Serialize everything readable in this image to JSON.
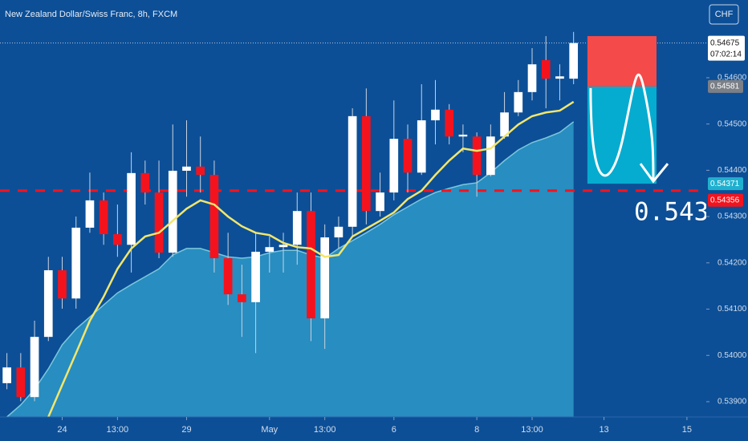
{
  "chart_data": {
    "type": "candlestick",
    "title": "New Zealand Dollar/Swiss Franc, 8h, FXCM",
    "currency": "CHF",
    "up_color": "#ffffff",
    "down_color": "#f4131d",
    "open": [
      0.5394,
      0.53974,
      0.5391,
      0.5404,
      0.54184,
      0.54123,
      0.54276,
      0.54335,
      0.54262,
      0.54239,
      0.54394,
      0.54352,
      0.54222,
      0.54399,
      0.54408,
      0.5439,
      0.5421,
      0.54132,
      0.54115,
      0.54224,
      0.54234,
      0.54239,
      0.54312,
      0.5408,
      0.54255,
      0.54278,
      0.54517,
      0.54312,
      0.54352,
      0.54468,
      0.54395,
      0.54508,
      0.54531,
      0.54473,
      0.54473,
      0.5439,
      0.54473,
      0.54525,
      0.54569,
      0.54638,
      0.54598,
      0.54598
    ],
    "high": [
      0.54005,
      0.54005,
      0.54075,
      0.54213,
      0.54213,
      0.543,
      0.54395,
      0.54352,
      0.54326,
      0.54439,
      0.54421,
      0.54421,
      0.54499,
      0.54508,
      0.54473,
      0.54421,
      0.54265,
      0.54196,
      0.54265,
      0.54257,
      0.54265,
      0.54352,
      0.54352,
      0.54283,
      0.543,
      0.54534,
      0.54577,
      0.54395,
      0.54551,
      0.54499,
      0.54586,
      0.54595,
      0.54543,
      0.54499,
      0.54482,
      0.54499,
      0.54569,
      0.54595,
      0.54664,
      0.5469,
      0.54629,
      0.54699
    ],
    "low": [
      0.53927,
      0.53901,
      0.53901,
      0.54031,
      0.54101,
      0.54101,
      0.54265,
      0.54239,
      0.54213,
      0.54179,
      0.54326,
      0.5421,
      0.54213,
      0.54343,
      0.54352,
      0.54179,
      0.54109,
      0.5404,
      0.54005,
      0.54179,
      0.54179,
      0.54196,
      0.54031,
      0.54014,
      0.54231,
      0.54257,
      0.54283,
      0.543,
      0.54335,
      0.54352,
      0.5439,
      0.54456,
      0.54456,
      0.54439,
      0.54343,
      0.54387,
      0.54468,
      0.54517,
      0.54551,
      0.54534,
      0.54551,
      0.54586
    ],
    "close": [
      0.53974,
      0.5391,
      0.5404,
      0.54184,
      0.54123,
      0.54276,
      0.54335,
      0.54262,
      0.54239,
      0.54394,
      0.54352,
      0.54222,
      0.54399,
      0.54408,
      0.5439,
      0.5421,
      0.54132,
      0.54115,
      0.54224,
      0.54234,
      0.54239,
      0.54312,
      0.5408,
      0.54255,
      0.54278,
      0.54517,
      0.54312,
      0.54352,
      0.54468,
      0.54395,
      0.54508,
      0.54531,
      0.54473,
      0.54477,
      0.5439,
      0.54473,
      0.54525,
      0.54569,
      0.54629,
      0.54598,
      0.54603,
      0.54675
    ],
    "ma_fast": {
      "color": "#f3e66a",
      "values": [
        null,
        null,
        null,
        0.53867,
        0.53936,
        0.54005,
        0.54075,
        0.54127,
        0.54187,
        0.54231,
        0.54257,
        0.54265,
        0.54291,
        0.54317,
        0.54335,
        0.54326,
        0.543,
        0.54279,
        0.54265,
        0.5426,
        0.54243,
        0.54234,
        0.54231,
        0.54213,
        0.54217,
        0.54257,
        0.54274,
        0.54291,
        0.54309,
        0.54338,
        0.54356,
        0.5439,
        0.54421,
        0.54447,
        0.54442,
        0.54447,
        0.54473,
        0.54499,
        0.54517,
        0.54525,
        0.54529,
        0.54548
      ]
    },
    "ma_slow": {
      "color": "#2f9ccb",
      "values": [
        0.53867,
        0.53893,
        0.53927,
        0.53971,
        0.54023,
        0.54057,
        0.54083,
        0.54109,
        0.54135,
        0.54153,
        0.5417,
        0.54187,
        0.54217,
        0.54231,
        0.54231,
        0.54222,
        0.54213,
        0.5421,
        0.54213,
        0.54222,
        0.54227,
        0.54227,
        0.54217,
        0.5421,
        0.54231,
        0.54248,
        0.54265,
        0.54283,
        0.54304,
        0.54321,
        0.54338,
        0.54352,
        0.54361,
        0.54369,
        0.54373,
        0.54395,
        0.54421,
        0.54444,
        0.5446,
        0.5447,
        0.54482,
        0.54505
      ]
    },
    "xlim": [
      -0.5,
      50.6
    ],
    "xticks": [
      {
        "value": 4,
        "label": "24"
      },
      {
        "value": 8,
        "label": "13:00"
      },
      {
        "value": 13,
        "label": "29"
      },
      {
        "value": 19,
        "label": "May"
      },
      {
        "value": 23,
        "label": "13:00"
      },
      {
        "value": 28,
        "label": "6"
      },
      {
        "value": 34,
        "label": "8"
      },
      {
        "value": 38,
        "label": "13:00"
      },
      {
        "value": 43.2,
        "label": "13"
      },
      {
        "value": 49.2,
        "label": "15"
      }
    ],
    "ylim": [
      0.53867,
      0.54768
    ],
    "yticks": [
      {
        "value": 0.539,
        "label": "0.53900"
      },
      {
        "value": 0.54,
        "label": "0.54000"
      },
      {
        "value": 0.541,
        "label": "0.54100"
      },
      {
        "value": 0.542,
        "label": "0.54200"
      },
      {
        "value": 0.543,
        "label": "0.54300"
      },
      {
        "value": 0.544,
        "label": "0.54400"
      },
      {
        "value": 0.545,
        "label": "0.54500"
      },
      {
        "value": 0.546,
        "label": "0.54600"
      }
    ],
    "last_price": {
      "value": 0.54675,
      "label": "0.54675",
      "countdown": "07:02:14"
    },
    "price_labels": [
      {
        "value": 0.54581,
        "label": "0.54581",
        "color": "#7b7f86"
      },
      {
        "value": 0.54371,
        "label": "0.54371",
        "color": "#20b0cf"
      },
      {
        "value": 0.54356,
        "label": "0.54356",
        "color": "#f4131d"
      }
    ],
    "support_level": 0.54356,
    "position": {
      "from": 42,
      "to": 47,
      "stop": 0.5469,
      "entry": 0.54581,
      "target": 0.54371
    },
    "annotation": "0.5435"
  }
}
